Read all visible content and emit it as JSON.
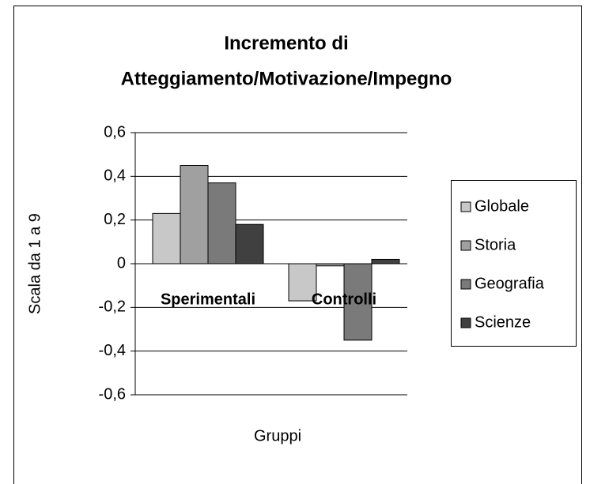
{
  "chart_data": {
    "type": "bar",
    "title": [
      "Incremento di",
      "Atteggiamento/Motivazione/Impegno"
    ],
    "y_label": "Scala da 1 a 9",
    "x_label": "Gruppi",
    "categories": [
      "Sperimentali",
      "Controlli"
    ],
    "series": [
      {
        "name": "Globale",
        "color": "#c8c8c8",
        "values": [
          0.23,
          -0.17
        ]
      },
      {
        "name": "Storia",
        "color": "#a0a0a0",
        "values": [
          0.45,
          -0.01
        ]
      },
      {
        "name": "Geografia",
        "color": "#7a7a7a",
        "values": [
          0.37,
          -0.35
        ]
      },
      {
        "name": "Scienze",
        "color": "#404040",
        "values": [
          0.18,
          0.02
        ]
      }
    ],
    "ylim": [
      -0.6,
      0.6
    ],
    "yticks": [
      {
        "value": -0.6,
        "label": "-0,6"
      },
      {
        "value": -0.4,
        "label": "-0,4"
      },
      {
        "value": -0.2,
        "label": "-0,2"
      },
      0,
      {
        "value": 0.2,
        "label": "0,2"
      },
      {
        "value": 0.4,
        "label": "0,4"
      },
      {
        "value": 0.6,
        "label": "0,6"
      }
    ],
    "grid": true,
    "legend": "right"
  }
}
